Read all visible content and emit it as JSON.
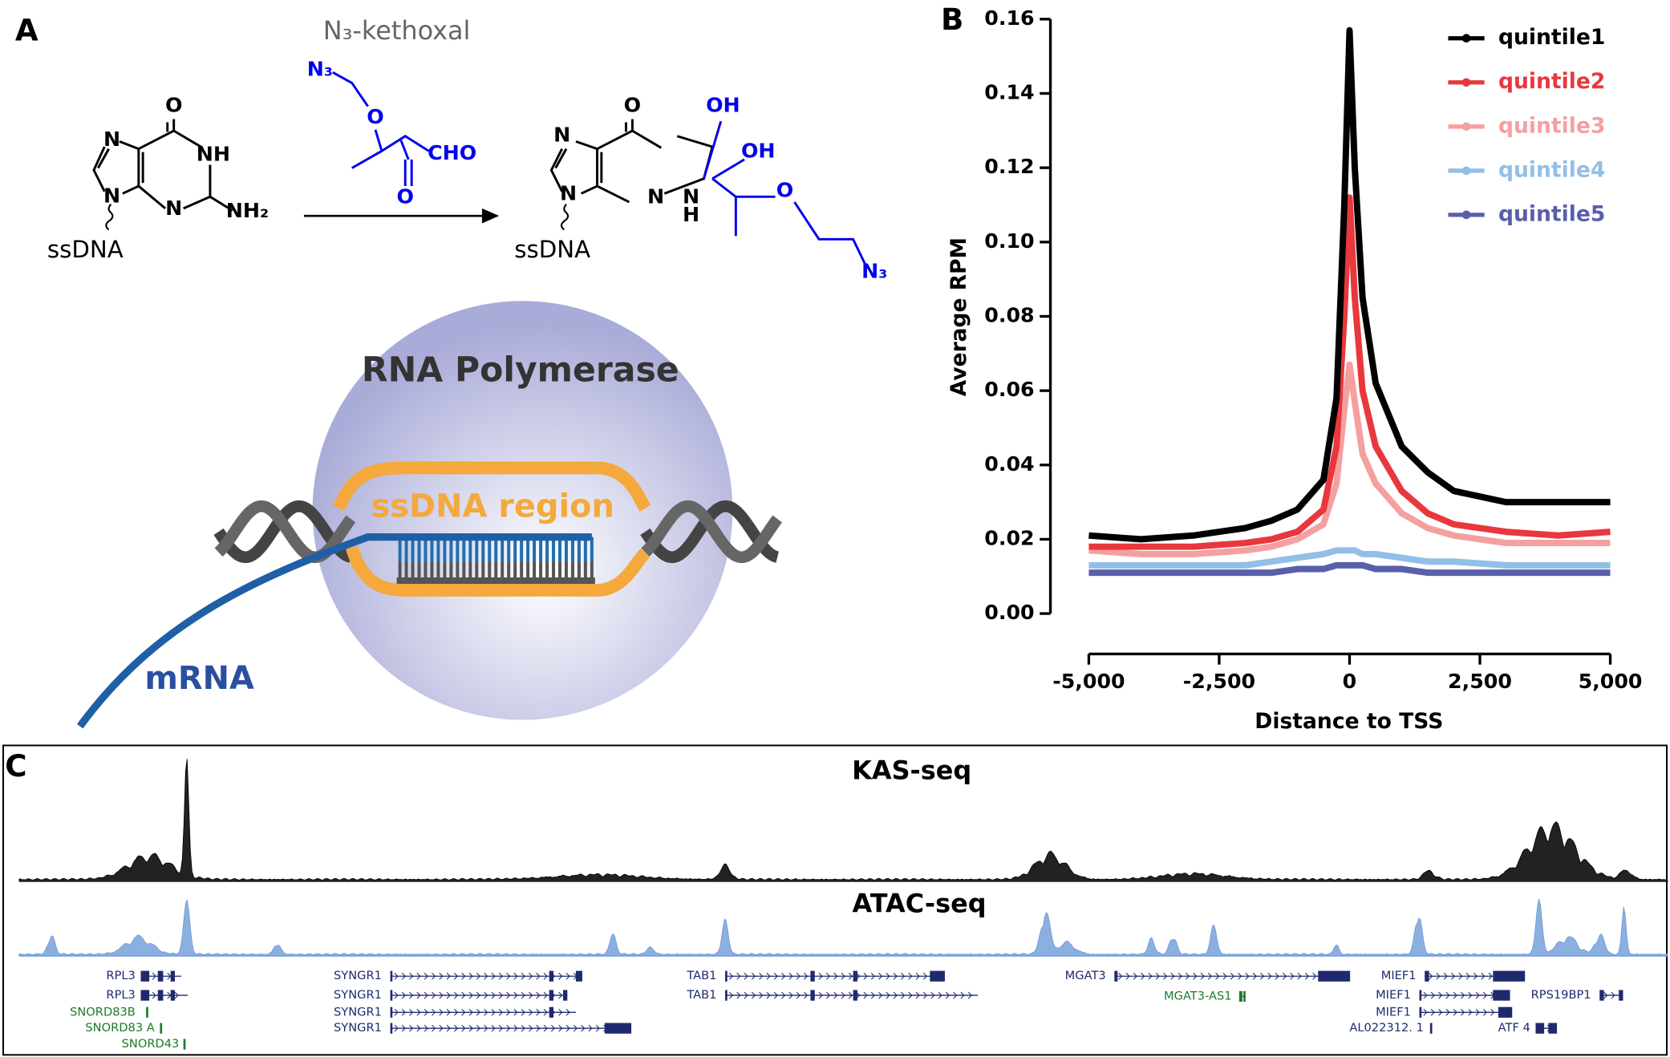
{
  "panels": {
    "a": "A",
    "b": "B",
    "c": "C"
  },
  "reaction": {
    "reagent_name": "N₃-kethoxal",
    "reactant_atoms": [
      "O",
      "NH",
      "NH₂",
      "N",
      "N",
      "N",
      "ssDNA"
    ],
    "reagent_atoms": [
      "N₃",
      "O",
      "CHO",
      "O"
    ],
    "product_atoms": [
      "O",
      "OH",
      "OH",
      "N",
      "N",
      "N",
      "N",
      "H",
      "O",
      "N₃",
      "ssDNA"
    ]
  },
  "polymerase": {
    "title": "RNA Polymerase",
    "bubble": "ssDNA region",
    "rna": "mRNA"
  },
  "chart_data": {
    "type": "line",
    "xlabel": "Distance to TSS",
    "ylabel": "Average RPM",
    "x": [
      -5000,
      -4000,
      -3000,
      -2000,
      -1500,
      -1000,
      -500,
      -250,
      -100,
      0,
      100,
      250,
      500,
      1000,
      1500,
      2000,
      3000,
      4000,
      5000
    ],
    "series": [
      {
        "name": "quintile1",
        "color": "#000000",
        "values": [
          0.021,
          0.02,
          0.021,
          0.023,
          0.025,
          0.028,
          0.036,
          0.058,
          0.11,
          0.157,
          0.12,
          0.085,
          0.062,
          0.045,
          0.038,
          0.033,
          0.03,
          0.03,
          0.03
        ]
      },
      {
        "name": "quintile2",
        "color": "#e8383d",
        "values": [
          0.018,
          0.018,
          0.018,
          0.019,
          0.02,
          0.022,
          0.028,
          0.045,
          0.08,
          0.112,
          0.085,
          0.06,
          0.045,
          0.033,
          0.027,
          0.024,
          0.022,
          0.021,
          0.022
        ]
      },
      {
        "name": "quintile3",
        "color": "#f4a0a0",
        "values": [
          0.017,
          0.016,
          0.016,
          0.017,
          0.018,
          0.02,
          0.024,
          0.035,
          0.055,
          0.067,
          0.057,
          0.043,
          0.035,
          0.027,
          0.023,
          0.021,
          0.019,
          0.019,
          0.019
        ]
      },
      {
        "name": "quintile4",
        "color": "#92bfe6",
        "values": [
          0.013,
          0.013,
          0.013,
          0.013,
          0.014,
          0.015,
          0.016,
          0.017,
          0.017,
          0.017,
          0.017,
          0.016,
          0.016,
          0.015,
          0.014,
          0.014,
          0.013,
          0.013,
          0.013
        ]
      },
      {
        "name": "quintile5",
        "color": "#5a5faa",
        "values": [
          0.011,
          0.011,
          0.011,
          0.011,
          0.011,
          0.012,
          0.012,
          0.013,
          0.013,
          0.013,
          0.013,
          0.013,
          0.012,
          0.012,
          0.011,
          0.011,
          0.011,
          0.011,
          0.011
        ]
      }
    ],
    "xlim": [
      -5000,
      5000
    ],
    "ylim": [
      0,
      0.16
    ],
    "xticks": [
      {
        "value": -5000,
        "label": "-5,000"
      },
      {
        "value": -2500,
        "label": "-2,500"
      },
      0,
      {
        "value": 2500,
        "label": "2,500"
      },
      {
        "value": 5000,
        "label": "5,000"
      }
    ],
    "yticks": [
      {
        "value": 0,
        "label": "0.00"
      },
      {
        "value": 0.02,
        "label": "0.02"
      },
      {
        "value": 0.04,
        "label": "0.04"
      },
      {
        "value": 0.06,
        "label": "0.06"
      },
      {
        "value": 0.08,
        "label": "0.08"
      },
      {
        "value": 0.1,
        "label": "0.10"
      },
      {
        "value": 0.12,
        "label": "0.12"
      },
      {
        "value": 0.14,
        "label": "0.14"
      },
      {
        "value": 0.16,
        "label": "0.16"
      }
    ],
    "legend": "top-right"
  },
  "tracks": {
    "kas": "KAS-seq",
    "atac": "ATAC-seq",
    "genes": [
      {
        "label": "RPL3",
        "color": "#1f2a6e"
      },
      {
        "label": "RPL3",
        "color": "#1f2a6e"
      },
      {
        "label": "SNORD83B",
        "color": "#1d7a2a"
      },
      {
        "label": "SNORD83 A",
        "color": "#1d7a2a"
      },
      {
        "label": "SNORD43",
        "color": "#1d7a2a"
      },
      {
        "label": "SYNGR1",
        "color": "#1f2a6e"
      },
      {
        "label": "SYNGR1",
        "color": "#1f2a6e"
      },
      {
        "label": "SYNGR1",
        "color": "#1f2a6e"
      },
      {
        "label": "SYNGR1",
        "color": "#1f2a6e"
      },
      {
        "label": "TAB1",
        "color": "#1f2a6e"
      },
      {
        "label": "TAB1",
        "color": "#1f2a6e"
      },
      {
        "label": "MGAT3",
        "color": "#1f2a6e"
      },
      {
        "label": "MGAT3-AS1",
        "color": "#1d7a2a"
      },
      {
        "label": "MIEF1",
        "color": "#1f2a6e"
      },
      {
        "label": "MIEF1",
        "color": "#1f2a6e"
      },
      {
        "label": "MIEF1",
        "color": "#1f2a6e"
      },
      {
        "label": "AL022312. 1",
        "color": "#1f2a6e"
      },
      {
        "label": "RPS19BP1",
        "color": "#1f2a6e"
      },
      {
        "label": "ATF 4",
        "color": "#1f2a6e"
      }
    ]
  }
}
